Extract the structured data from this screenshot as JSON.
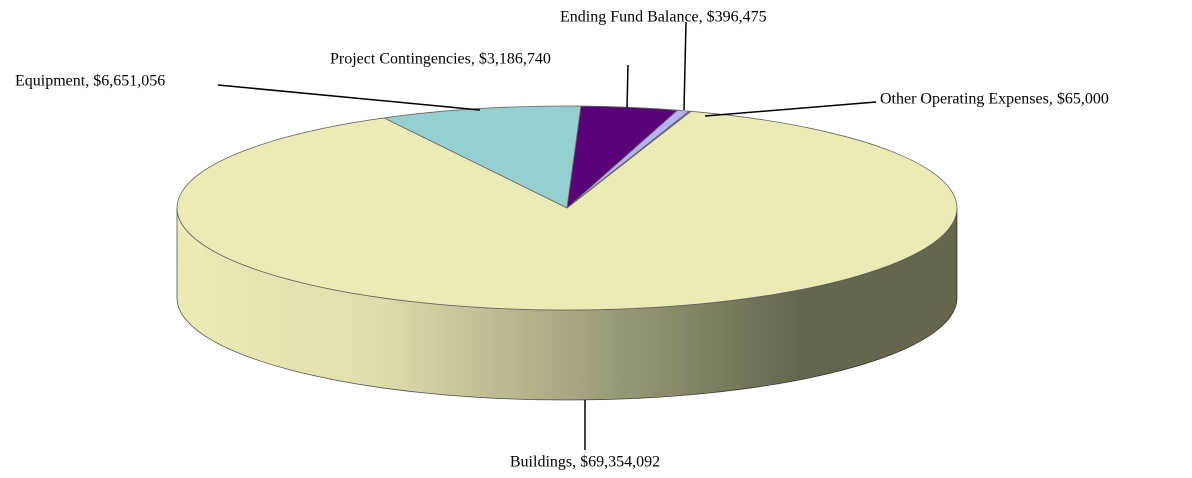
{
  "chart_data": {
    "type": "pie",
    "style": "3d",
    "categories": [
      "Equipment",
      "Project Contingencies",
      "Ending Fund Balance",
      "Other Operating Expenses",
      "Buildings"
    ],
    "values": [
      6651056,
      3186740,
      396475,
      65000,
      69354092
    ],
    "value_labels": [
      "Equipment, $6,651,056",
      "Project Contingencies, $3,186,740",
      "Ending Fund Balance, $396,475",
      "Other Operating Expenses, $65,000",
      "Buildings, $69,354,092"
    ],
    "colors": [
      "#96cfcf",
      "#5a0078",
      "#b4b4f0",
      "#7070e0",
      "#ecebb5"
    ]
  }
}
